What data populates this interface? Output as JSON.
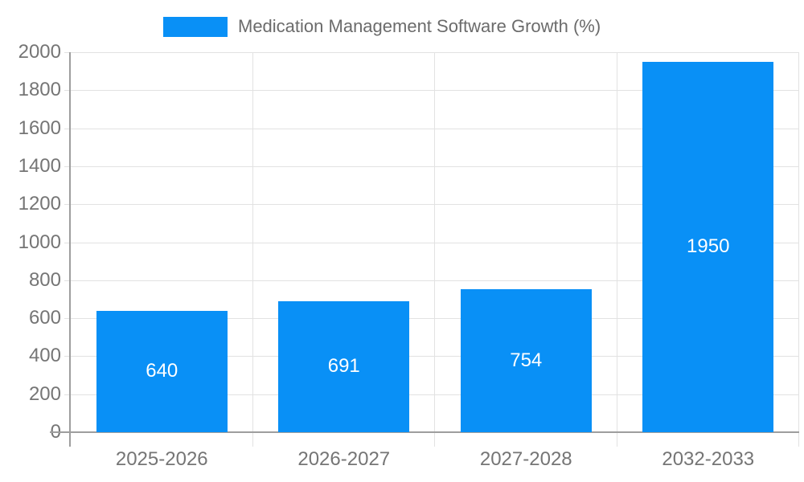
{
  "chart_data": {
    "type": "bar",
    "title": "",
    "legend": [
      "Medication Management Software Growth (%)"
    ],
    "legend_position": "top",
    "categories": [
      "2025-2026",
      "2026-2027",
      "2027-2028",
      "2032-2033"
    ],
    "values": [
      640,
      691,
      754,
      1950
    ],
    "xlabel": "",
    "ylabel": "",
    "ylim": [
      0,
      2000
    ],
    "ytick_step": 200,
    "yticks": [
      0,
      200,
      400,
      600,
      800,
      1000,
      1200,
      1400,
      1600,
      1800,
      2000
    ],
    "grid": true,
    "bar_labels_inside": true,
    "colors": {
      "bar": "#0990f6",
      "bar_label": "#ffffff",
      "tick_label": "#757575",
      "axis_line": "#9e9e9e",
      "gridline": "#e2e2e2",
      "legend_text": "#6b6b6b",
      "background": "#ffffff"
    }
  }
}
